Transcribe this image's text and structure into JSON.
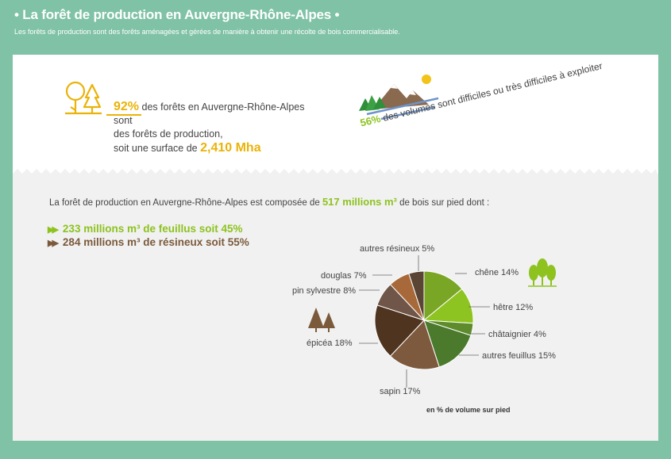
{
  "header": {
    "title": "• La forêt de production en Auvergne-Rhône-Alpes •",
    "subtitle": "Les forêts de production sont des forêts aménagées et gérées de manière à obtenir une récolte de bois commercialisable."
  },
  "stat_production": {
    "percent": "92%",
    "text1": " des forêts en Auvergne-Rhône-Alpes sont",
    "text2": "des forêts de production,",
    "text3": "soit une surface de ",
    "area": "2,410 Mha"
  },
  "stat_difficulty": {
    "percent": "56%",
    "text": " des volumes sont difficiles ou très difficiles à exploiter"
  },
  "composition": {
    "intro": "La forêt de production en Auvergne-Rhône-Alpes est composée de ",
    "volume": "517 millions m³",
    "outro": " de bois sur pied dont :",
    "feuillus": "233 millions m³ de feuillus soit 45%",
    "resineux": "284 millions m³ de résineux soit 55%"
  },
  "chart_data": {
    "type": "pie",
    "unit_note": "en % de volume sur pied",
    "slices": [
      {
        "label": "chêne 14%",
        "value": 14,
        "color": "#7aa626"
      },
      {
        "label": "hêtre 12%",
        "value": 12,
        "color": "#8ec421"
      },
      {
        "label": "châtaignier 4%",
        "value": 4,
        "color": "#5e8c2c"
      },
      {
        "label": "autres feuillus 15%",
        "value": 15,
        "color": "#4b7a2c"
      },
      {
        "label": "sapin 17%",
        "value": 17,
        "color": "#7d5a3e"
      },
      {
        "label": "épicéa 18%",
        "value": 18,
        "color": "#4f3420"
      },
      {
        "label": "pin sylvestre 8%",
        "value": 8,
        "color": "#6f5648"
      },
      {
        "label": "douglas 7%",
        "value": 7,
        "color": "#a8693a"
      },
      {
        "label": "autres résineux 5%",
        "value": 5,
        "color": "#5a4534"
      }
    ]
  },
  "colors": {
    "background": "#7fc2a6",
    "yellow": "#eab308",
    "green": "#8dc21f",
    "brown": "#7b5a3c"
  }
}
